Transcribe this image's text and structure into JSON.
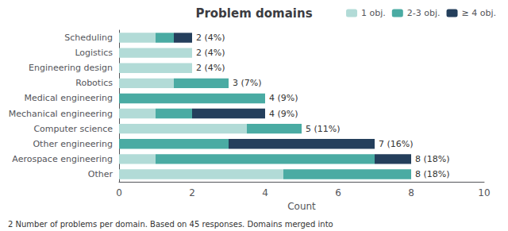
{
  "chart_data": {
    "type": "bar",
    "orientation": "horizontal",
    "stacked": true,
    "title": "Problem domains",
    "xlabel": "Count",
    "categories": [
      "Other",
      "Aerospace engineering",
      "Other engineering",
      "Computer science",
      "Mechanical engineering",
      "Medical engineering",
      "Robotics",
      "Engineering design",
      "Logistics",
      "Scheduling"
    ],
    "series": [
      {
        "name": "1 obj.",
        "color": "#b2dbd7",
        "values": [
          4.5,
          1.0,
          0.0,
          3.5,
          1.0,
          0.0,
          1.5,
          2.0,
          2.0,
          1.0
        ]
      },
      {
        "name": "2-3 obj.",
        "color": "#4aaba3",
        "values": [
          3.5,
          6.0,
          3.0,
          1.5,
          1.0,
          4.0,
          1.5,
          0.0,
          0.0,
          0.5
        ]
      },
      {
        "name": "≥ 4 obj.",
        "color": "#243f5c",
        "values": [
          0.0,
          1.0,
          4.0,
          0.0,
          2.0,
          0.0,
          0.0,
          0.0,
          0.0,
          0.5
        ]
      }
    ],
    "annotations": [
      "8 (18%)",
      "8 (18%)",
      "7 (16%)",
      "5 (11%)",
      "4 (9%)",
      "4 (9%)",
      "3 (7%)",
      "2 (4%)",
      "2 (4%)",
      "2 (4%)"
    ],
    "xlim": [
      0,
      10
    ],
    "xticks": [
      0,
      2,
      4,
      6,
      8,
      10
    ],
    "legend": "upper right",
    "grid": false,
    "caption": "2 Number of problems per domain. Based on 45 responses. Domains merged into"
  }
}
